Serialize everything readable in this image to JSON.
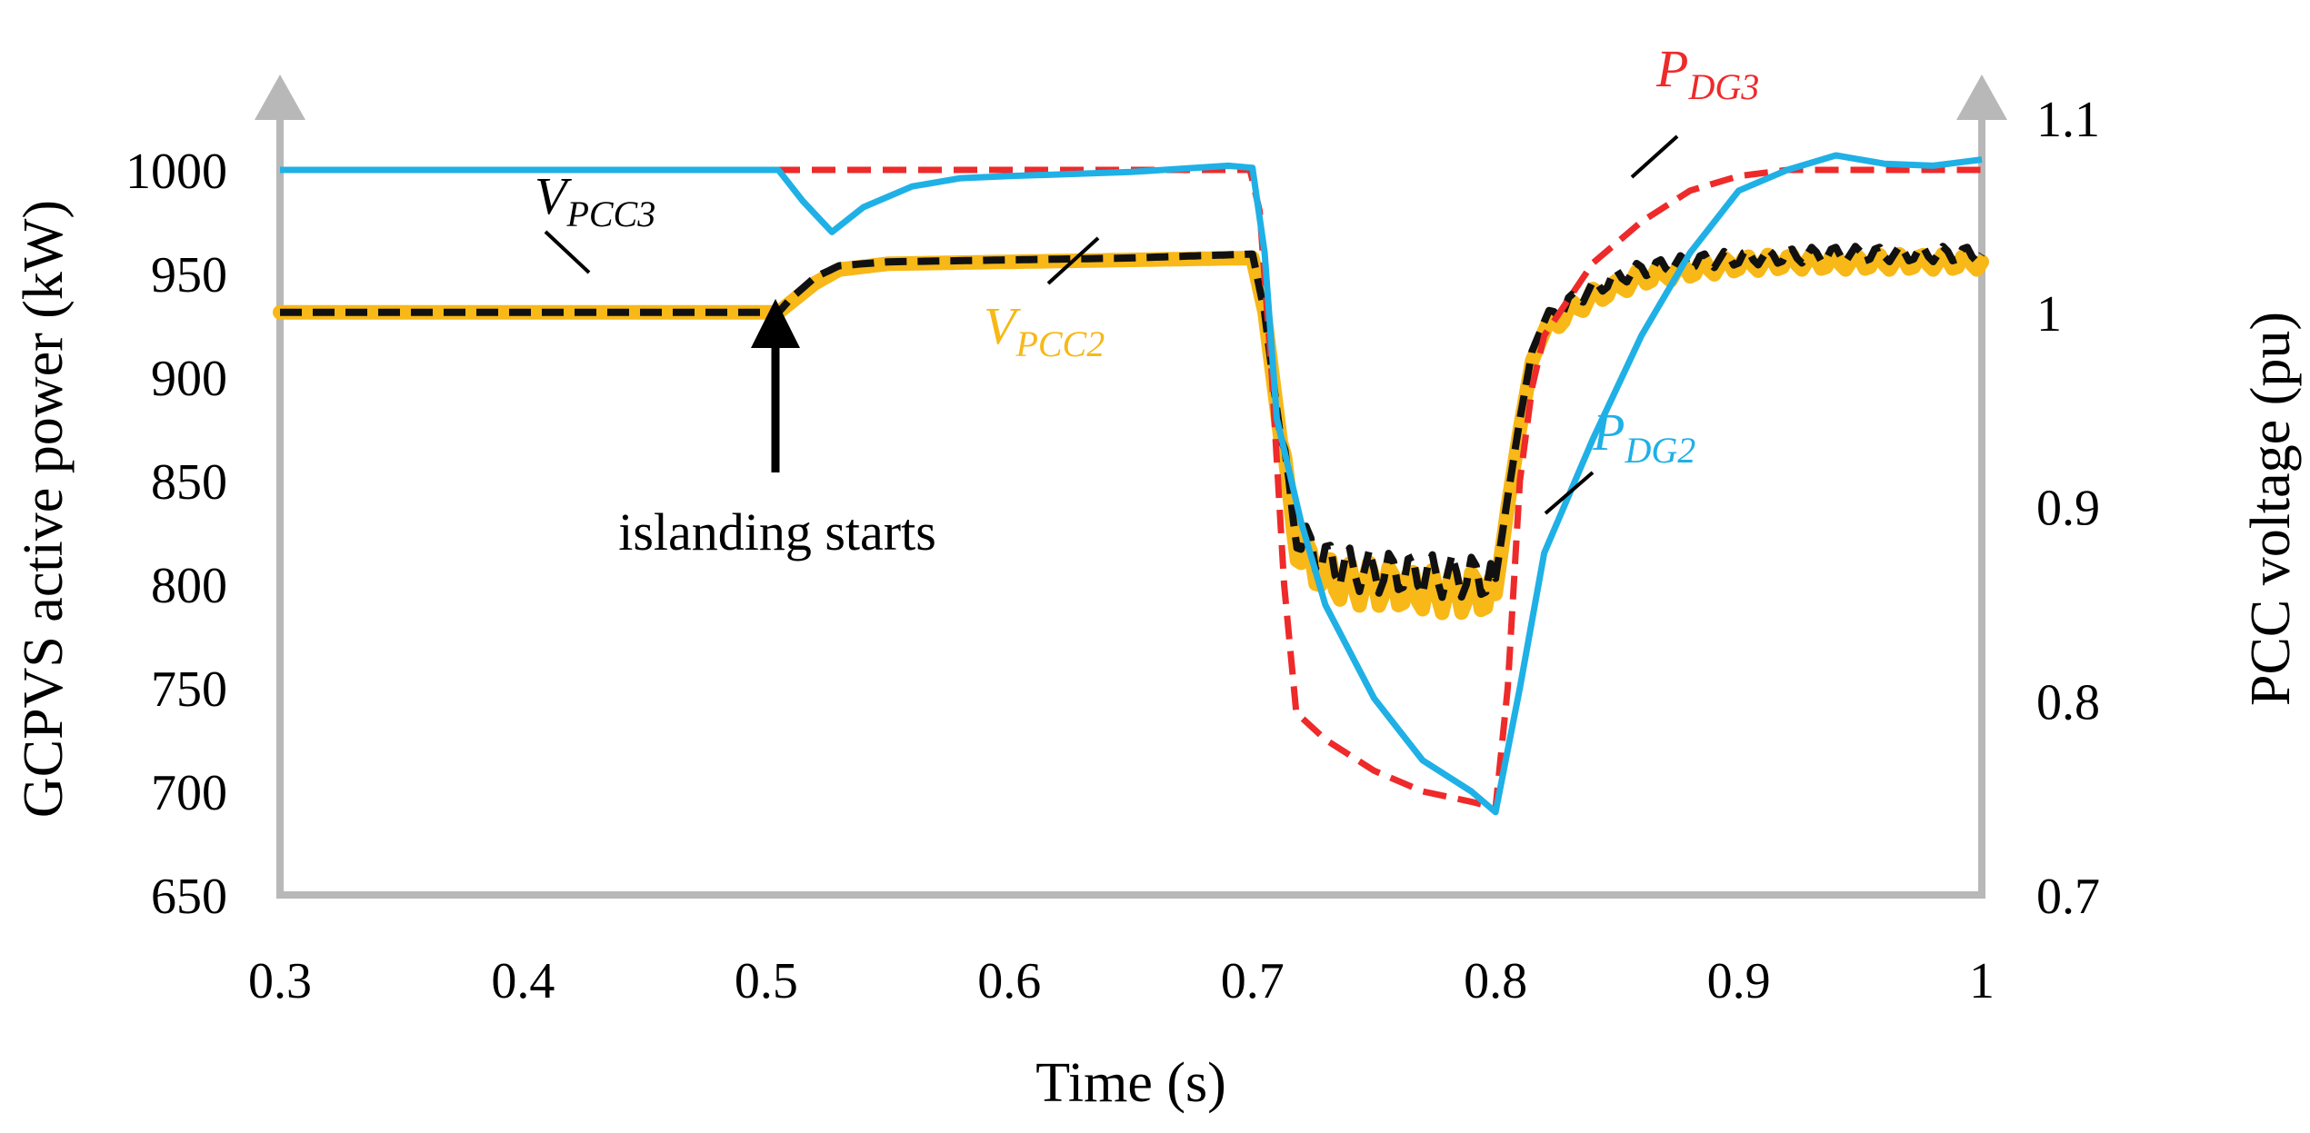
{
  "chart_data": {
    "type": "line",
    "xlabel": "Time (s)",
    "ylabel": "GCPVS active power (kW)",
    "y2label": "PCC voltage (pu)",
    "xlim": [
      0.3,
      1.0
    ],
    "ylim": [
      650,
      1025
    ],
    "y2lim": [
      0.7,
      1.1
    ],
    "x_ticks": [
      "0.3",
      "0.4",
      "0.5",
      "0.6",
      "0.7",
      "0.8",
      "0.9",
      "1"
    ],
    "y_ticks": [
      "650",
      "700",
      "750",
      "800",
      "850",
      "900",
      "950",
      "1000"
    ],
    "y2_ticks": [
      "0.7",
      "0.8",
      "0.9",
      "1",
      "1.1"
    ],
    "colors": {
      "pdg2": "#1fb0e6",
      "pdg3": "#ee2a2a",
      "vpcc2": "#f7b818",
      "vpcc3": "#111111",
      "axis": "#b8b8b8"
    },
    "series": [
      {
        "name": "P_DG2",
        "label_main": "P",
        "label_sub": "DG2",
        "axis": "left",
        "style": "solid",
        "x": [
          0.3,
          0.4,
          0.5,
          0.505,
          0.515,
          0.527,
          0.54,
          0.56,
          0.58,
          0.6,
          0.65,
          0.69,
          0.7,
          0.705,
          0.71,
          0.72,
          0.73,
          0.75,
          0.77,
          0.79,
          0.8,
          0.81,
          0.82,
          0.84,
          0.86,
          0.88,
          0.9,
          0.92,
          0.94,
          0.96,
          0.98,
          1.0
        ],
        "y": [
          1000,
          1000,
          1000,
          1000,
          985,
          970,
          982,
          992,
          996,
          997,
          999,
          1002,
          1001,
          960,
          880,
          830,
          790,
          745,
          715,
          700,
          690,
          750,
          815,
          870,
          920,
          960,
          990,
          1000,
          1007,
          1003,
          1002,
          1005
        ]
      },
      {
        "name": "P_DG3",
        "label_main": "P",
        "label_sub": "DG3",
        "axis": "left",
        "style": "dashed",
        "x": [
          0.3,
          0.5,
          0.6,
          0.699,
          0.703,
          0.708,
          0.713,
          0.718,
          0.73,
          0.75,
          0.77,
          0.79,
          0.8,
          0.805,
          0.81,
          0.815,
          0.82,
          0.84,
          0.86,
          0.88,
          0.9,
          0.92,
          0.95,
          1.0
        ],
        "y": [
          1000,
          1000,
          1000,
          1000,
          980,
          900,
          800,
          738,
          725,
          710,
          700,
          695,
          692,
          750,
          850,
          895,
          920,
          955,
          975,
          990,
          997,
          1000,
          1000,
          1000
        ]
      },
      {
        "name": "V_PCC2",
        "label_main": "V",
        "label_sub": "PCC2",
        "axis": "right",
        "style": "solid-thick",
        "x": [
          0.3,
          0.4,
          0.5,
          0.505,
          0.51,
          0.52,
          0.53,
          0.55,
          0.6,
          0.65,
          0.7,
          0.705,
          0.71,
          0.715,
          0.72,
          0.73,
          0.74,
          0.75,
          0.76,
          0.77,
          0.78,
          0.79,
          0.8,
          0.805,
          0.81,
          0.815,
          0.82,
          0.83,
          0.84,
          0.85,
          0.86,
          0.88,
          0.9,
          0.92,
          0.94,
          0.96,
          0.98,
          1.0
        ],
        "y": [
          1.0,
          1.0,
          1.0,
          1.0,
          1.005,
          1.015,
          1.022,
          1.025,
          1.026,
          1.027,
          1.028,
          1.0,
          0.95,
          0.9,
          0.875,
          0.865,
          0.86,
          0.86,
          0.858,
          0.857,
          0.856,
          0.856,
          0.855,
          0.9,
          0.94,
          0.975,
          0.99,
          1.0,
          1.008,
          1.013,
          1.018,
          1.022,
          1.025,
          1.026,
          1.026,
          1.026,
          1.026,
          1.026
        ]
      },
      {
        "name": "V_PCC3",
        "label_main": "V",
        "label_sub": "PCC3",
        "axis": "right",
        "style": "dashed",
        "x": [
          0.3,
          0.4,
          0.5,
          0.505,
          0.51,
          0.52,
          0.53,
          0.55,
          0.6,
          0.65,
          0.7,
          0.705,
          0.71,
          0.715,
          0.72,
          0.73,
          0.74,
          0.75,
          0.76,
          0.77,
          0.78,
          0.79,
          0.8,
          0.805,
          0.81,
          0.815,
          0.82,
          0.83,
          0.84,
          0.85,
          0.86,
          0.88,
          0.9,
          0.92,
          0.94,
          0.96,
          0.98,
          1.0
        ],
        "y": [
          1.0,
          1.0,
          1.0,
          1.0,
          1.007,
          1.018,
          1.024,
          1.026,
          1.027,
          1.028,
          1.03,
          1.0,
          0.95,
          0.905,
          0.882,
          0.872,
          0.868,
          0.866,
          0.866,
          0.865,
          0.864,
          0.864,
          0.863,
          0.905,
          0.945,
          0.98,
          0.995,
          1.005,
          1.012,
          1.018,
          1.022,
          1.026,
          1.028,
          1.029,
          1.03,
          1.03,
          1.03,
          1.03
        ]
      }
    ],
    "annotations": {
      "islanding": "islanding starts",
      "islanding_x": 0.505
    }
  }
}
